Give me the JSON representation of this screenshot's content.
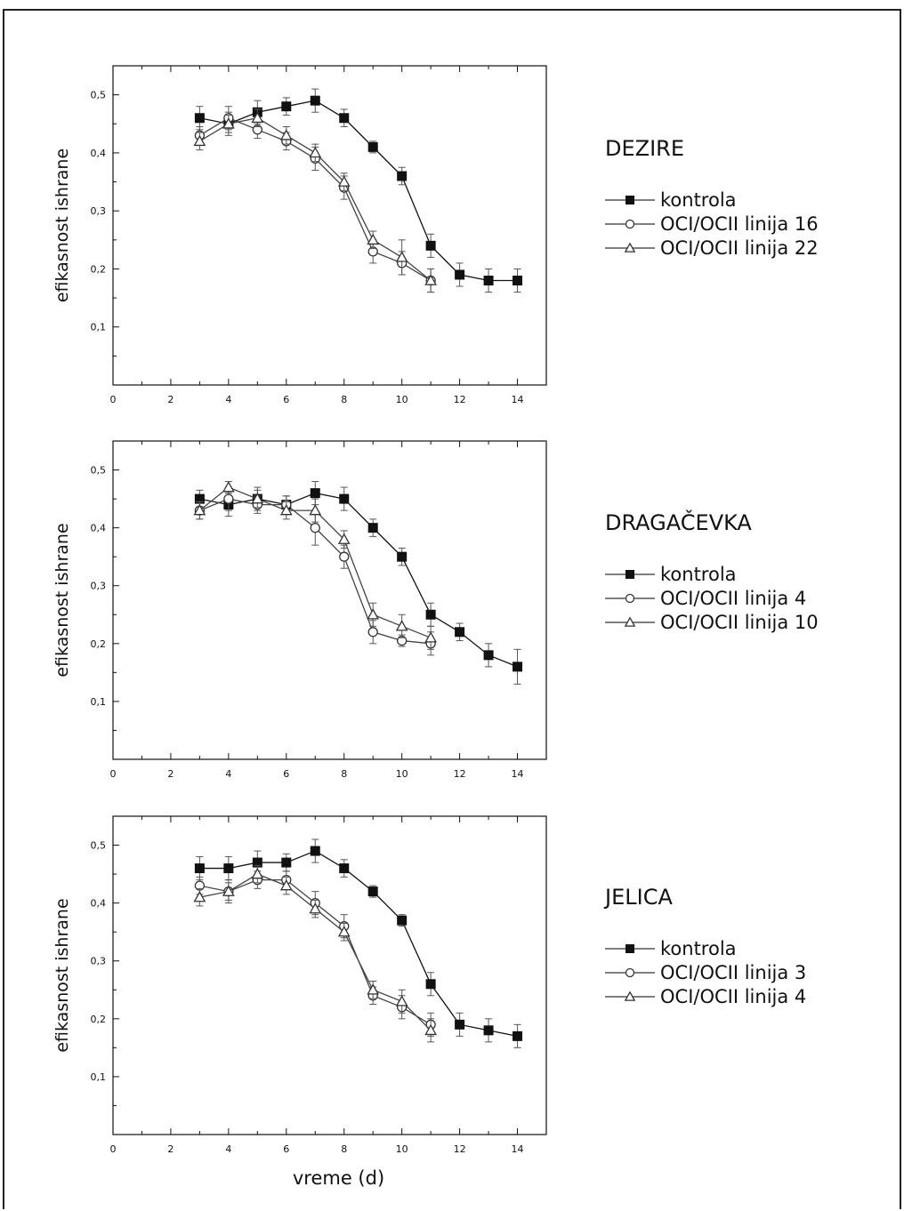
{
  "chart_data": [
    {
      "type": "line",
      "title": "DEZIRE",
      "ylabel": "efikasnost ishrane",
      "xlabel": "",
      "xlim": [
        0,
        15
      ],
      "ylim": [
        0,
        0.55
      ],
      "xticks": [
        0,
        2,
        4,
        6,
        8,
        10,
        12,
        14
      ],
      "yticks": [
        0.1,
        0.2,
        0.3,
        0.4,
        0.5
      ],
      "ytick_labels": [
        "0,1",
        "0,2",
        "0,3",
        "0,4",
        "0,5"
      ],
      "legend_position": "right",
      "series": [
        {
          "name": "kontrola",
          "marker": "square-filled",
          "x": [
            3,
            4,
            5,
            6,
            7,
            8,
            9,
            10,
            11,
            12,
            13,
            14
          ],
          "y": [
            0.46,
            0.45,
            0.47,
            0.48,
            0.49,
            0.46,
            0.41,
            0.36,
            0.24,
            0.19,
            0.18,
            0.18
          ],
          "err": [
            0.02,
            0.02,
            0.02,
            0.015,
            0.02,
            0.015,
            0.01,
            0.015,
            0.02,
            0.02,
            0.02,
            0.02
          ]
        },
        {
          "name": "OCI/OCII linija 16",
          "marker": "circle-open",
          "x": [
            3,
            4,
            5,
            6,
            7,
            8,
            9,
            10,
            11
          ],
          "y": [
            0.43,
            0.46,
            0.44,
            0.42,
            0.39,
            0.34,
            0.23,
            0.21,
            0.18
          ],
          "err": [
            0.015,
            0.02,
            0.015,
            0.015,
            0.02,
            0.02,
            0.02,
            0.02,
            0.02
          ]
        },
        {
          "name": "OCI/OCII linija 22",
          "marker": "triangle-open",
          "x": [
            3,
            4,
            5,
            6,
            7,
            8,
            9,
            10,
            11
          ],
          "y": [
            0.42,
            0.45,
            0.46,
            0.43,
            0.4,
            0.35,
            0.25,
            0.22,
            0.18
          ],
          "err": [
            0.015,
            0.015,
            0.015,
            0.015,
            0.015,
            0.015,
            0.015,
            0.03,
            0.02
          ]
        }
      ]
    },
    {
      "type": "line",
      "title": "DRAGAČEVKA",
      "ylabel": "efikasnost ishrane",
      "xlabel": "",
      "xlim": [
        0,
        15
      ],
      "ylim": [
        0,
        0.55
      ],
      "xticks": [
        0,
        2,
        4,
        6,
        8,
        10,
        12,
        14
      ],
      "yticks": [
        0.1,
        0.2,
        0.3,
        0.4,
        0.5
      ],
      "ytick_labels": [
        "0,1",
        "0,2",
        "0,3",
        "0,4",
        "0,5"
      ],
      "legend_position": "right",
      "series": [
        {
          "name": "kontrola",
          "marker": "square-filled",
          "x": [
            3,
            4,
            5,
            6,
            7,
            8,
            9,
            10,
            11,
            12,
            13,
            14
          ],
          "y": [
            0.45,
            0.44,
            0.45,
            0.44,
            0.46,
            0.45,
            0.4,
            0.35,
            0.25,
            0.22,
            0.18,
            0.16
          ],
          "err": [
            0.015,
            0.02,
            0.02,
            0.015,
            0.02,
            0.02,
            0.015,
            0.015,
            0.02,
            0.015,
            0.02,
            0.03
          ]
        },
        {
          "name": "OCI/OCII linija 4",
          "marker": "circle-open",
          "x": [
            3,
            4,
            5,
            6,
            7,
            8,
            9,
            10,
            11
          ],
          "y": [
            0.43,
            0.45,
            0.44,
            0.44,
            0.4,
            0.35,
            0.22,
            0.205,
            0.2
          ],
          "err": [
            0.015,
            0.02,
            0.015,
            0.015,
            0.03,
            0.02,
            0.02,
            0.01,
            0.02
          ]
        },
        {
          "name": "OCI/OCII linija 10",
          "marker": "triangle-open",
          "x": [
            3,
            4,
            5,
            6,
            7,
            8,
            9,
            10,
            11
          ],
          "y": [
            0.43,
            0.47,
            0.45,
            0.43,
            0.43,
            0.38,
            0.25,
            0.23,
            0.21
          ],
          "err": [
            0.015,
            0.01,
            0.015,
            0.015,
            0.02,
            0.015,
            0.02,
            0.02,
            0.02
          ]
        }
      ]
    },
    {
      "type": "line",
      "title": "JELICA",
      "ylabel": "efikasnost ishrane",
      "xlabel": "vreme (d)",
      "xlim": [
        0,
        15
      ],
      "ylim": [
        0,
        0.55
      ],
      "xticks": [
        0,
        2,
        4,
        6,
        8,
        10,
        12,
        14
      ],
      "yticks": [
        0.1,
        0.2,
        0.3,
        0.4,
        0.5
      ],
      "ytick_labels": [
        "0,1",
        "0,2",
        "0,3",
        "0,4",
        "0,5"
      ],
      "legend_position": "right",
      "series": [
        {
          "name": "kontrola",
          "marker": "square-filled",
          "x": [
            3,
            4,
            5,
            6,
            7,
            8,
            9,
            10,
            11,
            12,
            13,
            14
          ],
          "y": [
            0.46,
            0.46,
            0.47,
            0.47,
            0.49,
            0.46,
            0.42,
            0.37,
            0.26,
            0.19,
            0.18,
            0.17
          ],
          "err": [
            0.02,
            0.02,
            0.02,
            0.015,
            0.02,
            0.015,
            0.01,
            0.01,
            0.02,
            0.02,
            0.02,
            0.02
          ]
        },
        {
          "name": "OCI/OCII linija 3",
          "marker": "circle-open",
          "x": [
            3,
            4,
            5,
            6,
            7,
            8,
            9,
            10,
            11
          ],
          "y": [
            0.43,
            0.42,
            0.44,
            0.44,
            0.4,
            0.36,
            0.24,
            0.22,
            0.19
          ],
          "err": [
            0.015,
            0.02,
            0.015,
            0.015,
            0.02,
            0.02,
            0.015,
            0.02,
            0.02
          ]
        },
        {
          "name": "OCI/OCII linija 4",
          "marker": "triangle-open",
          "x": [
            3,
            4,
            5,
            6,
            7,
            8,
            9,
            10,
            11
          ],
          "y": [
            0.41,
            0.42,
            0.45,
            0.43,
            0.39,
            0.35,
            0.25,
            0.23,
            0.18
          ],
          "err": [
            0.015,
            0.015,
            0.015,
            0.015,
            0.015,
            0.015,
            0.015,
            0.02,
            0.02
          ]
        }
      ]
    }
  ]
}
